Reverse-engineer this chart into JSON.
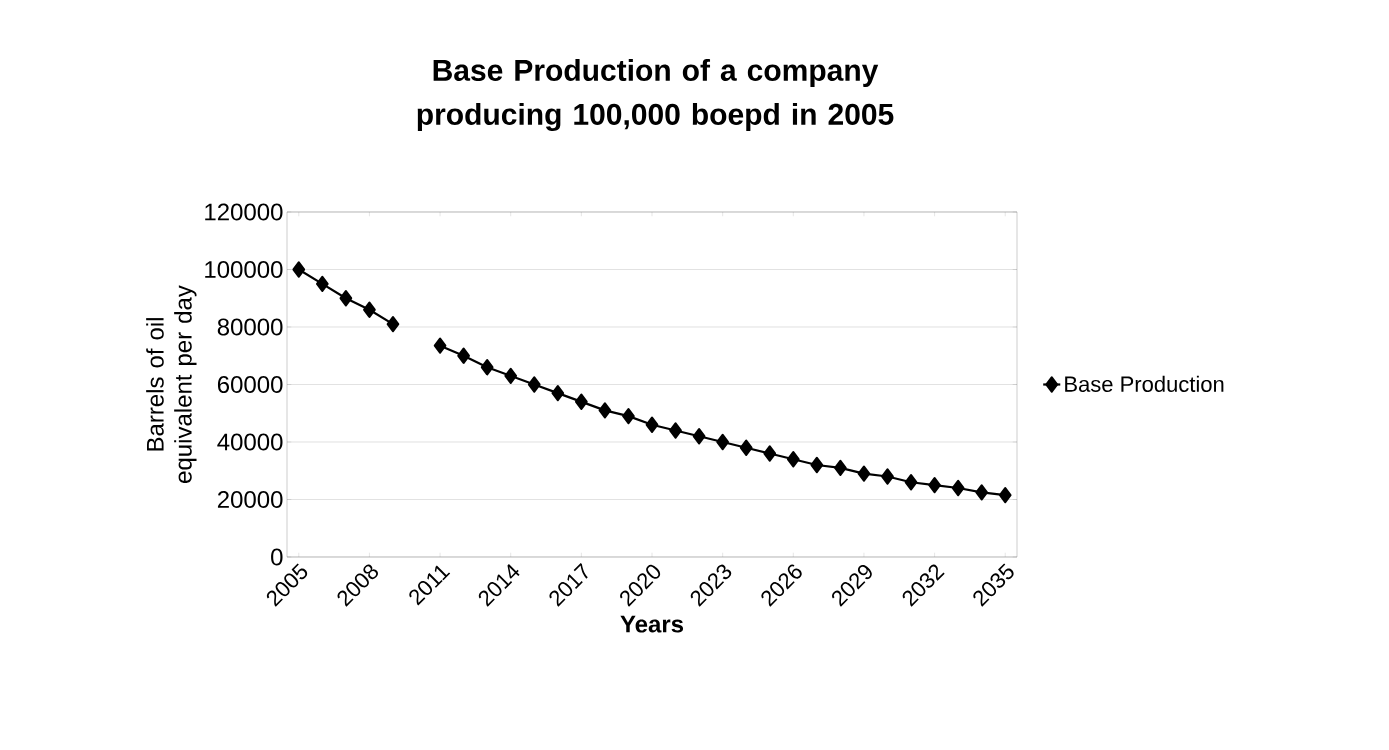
{
  "chart_data": {
    "type": "line",
    "title": "Base Production of a company producing 100,000 boepd in 2005",
    "xlabel": "Years",
    "ylabel": "Barrels of oil equivalent per day",
    "categories": [
      "2005",
      null,
      null,
      "2008",
      null,
      null,
      "2011",
      null,
      null,
      "2014",
      null,
      null,
      "2017",
      null,
      null,
      "2020",
      null,
      null,
      "2023",
      null,
      null,
      "2026",
      null,
      null,
      "2029",
      null,
      null,
      "2032",
      null,
      null,
      "2035"
    ],
    "series": [
      {
        "name": "Base Production",
        "color": "#000000",
        "values": [
          100000,
          95000,
          90000,
          86000,
          81000,
          null,
          73500,
          70000,
          66000,
          63000,
          60000,
          57000,
          54000,
          51000,
          49000,
          46000,
          44000,
          42000,
          40000,
          38000,
          36000,
          34000,
          32000,
          31000,
          29000,
          28000,
          26000,
          25000,
          24000,
          22500,
          21500
        ]
      }
    ],
    "ylim": [
      0,
      120000
    ],
    "yticks": [
      0,
      20000,
      40000,
      60000,
      80000,
      100000,
      120000
    ],
    "grid": "y",
    "legend": "right",
    "marker": "diamond",
    "line_style": "solid"
  }
}
